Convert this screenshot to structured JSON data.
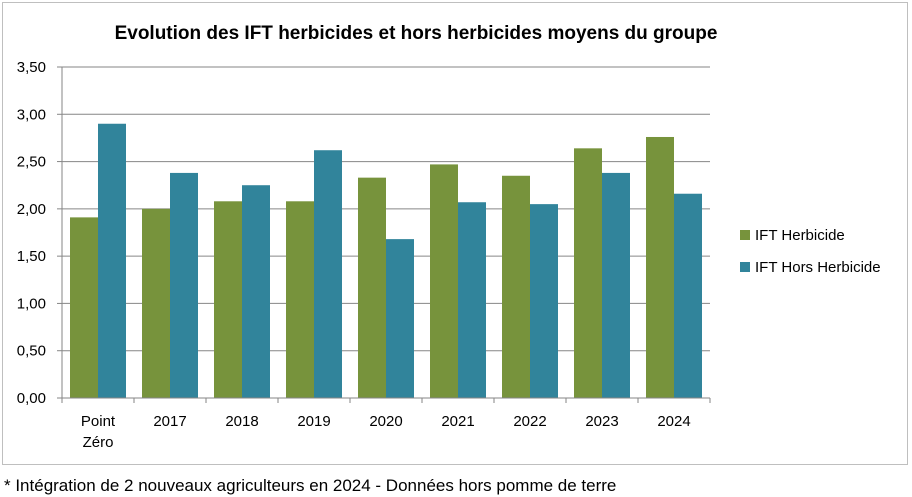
{
  "chart_data": {
    "type": "bar",
    "title": "Evolution des IFT herbicides et hors herbicides moyens du groupe",
    "categories": [
      [
        "Point",
        "Zéro"
      ],
      [
        "2017"
      ],
      [
        "2018"
      ],
      [
        "2019"
      ],
      [
        "2020"
      ],
      [
        "2021"
      ],
      [
        "2022"
      ],
      [
        "2023"
      ],
      [
        "2024"
      ]
    ],
    "series": [
      {
        "name": "IFT Herbicide",
        "color": "#77933c",
        "values": [
          1.91,
          2.0,
          2.08,
          2.08,
          2.33,
          2.47,
          2.35,
          2.64,
          2.76
        ]
      },
      {
        "name": "IFT Hors Herbicide",
        "color": "#31849b",
        "values": [
          2.9,
          2.38,
          2.25,
          2.62,
          1.68,
          2.07,
          2.05,
          2.38,
          2.16
        ]
      }
    ],
    "yticks": [
      "0,00",
      "0,50",
      "1,00",
      "1,50",
      "2,00",
      "2,50",
      "3,00",
      "3,50"
    ],
    "ylim": [
      0,
      3.5
    ],
    "grid": true,
    "legend_position": "right",
    "xlabel": "",
    "ylabel": ""
  },
  "footnote": "* Intégration de 2 nouveaux agriculteurs en 2024 - Données hors pomme de terre"
}
